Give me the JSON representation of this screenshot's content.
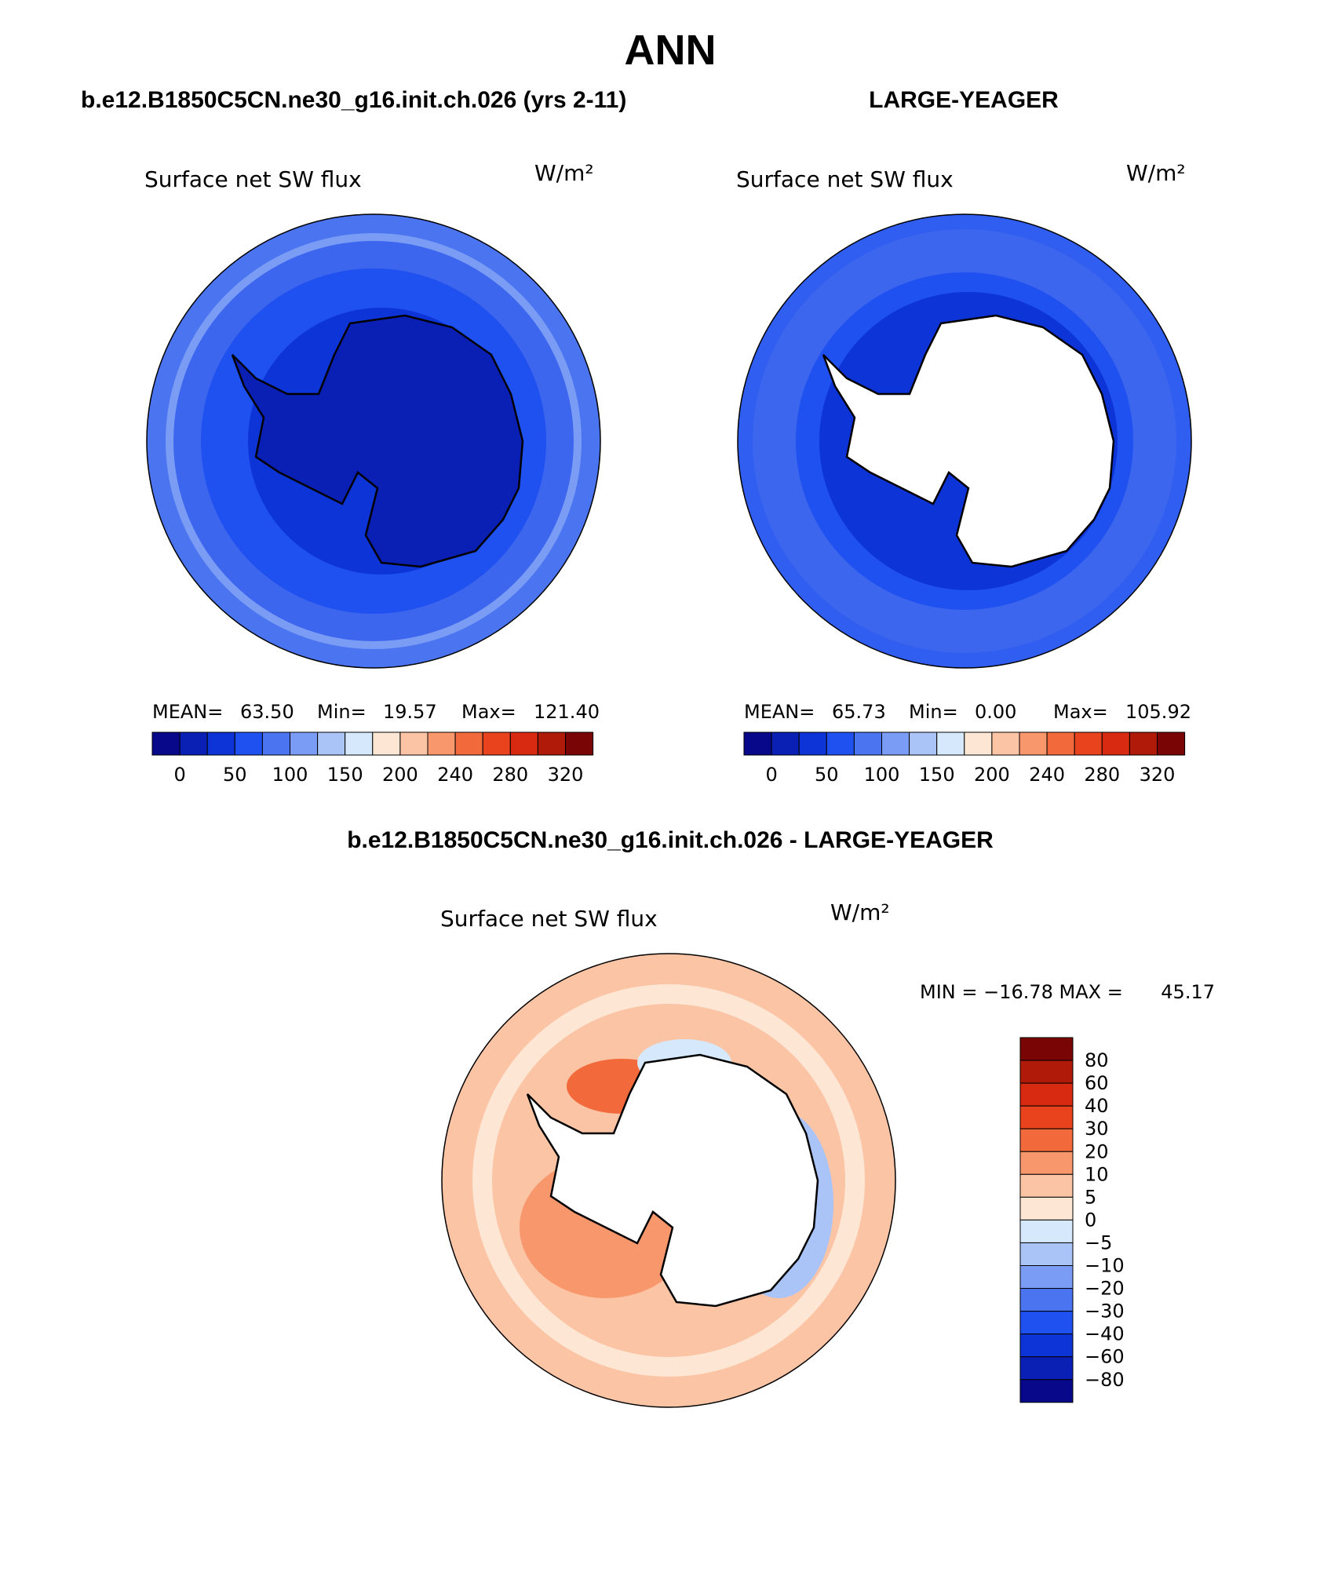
{
  "title": "ANN",
  "panels": [
    {
      "header": "b.e12.B1850C5CN.ne30_g16.init.ch.026 (yrs 2-11)",
      "field": "Surface net SW flux",
      "units": "W/m²",
      "stats": [
        "MEAN=",
        "63.50",
        "Min=",
        "19.57",
        "Max=",
        "121.40"
      ],
      "colorbar_labels": [
        "0",
        "50",
        "100",
        "150",
        "200",
        "240",
        "280",
        "320"
      ]
    },
    {
      "header": "LARGE-YEAGER",
      "field": "Surface net SW flux",
      "units": "W/m²",
      "stats": [
        "MEAN=",
        "65.73",
        "Min=",
        "0.00",
        "Max=",
        "105.92"
      ],
      "colorbar_labels": [
        "0",
        "50",
        "100",
        "150",
        "200",
        "240",
        "280",
        "320"
      ]
    },
    {
      "header": "b.e12.B1850C5CN.ne30_g16.init.ch.026 - LARGE-YEAGER",
      "field": "Surface net SW flux",
      "units": "W/m²",
      "stats": [
        "MIN = −16.78 MAX =",
        "45.17"
      ],
      "colorbar_labels": [
        "80",
        "60",
        "40",
        "30",
        "20",
        "10",
        "5",
        "0",
        "−5",
        "−10",
        "−20",
        "−30",
        "−40",
        "−60",
        "−80"
      ]
    }
  ]
}
